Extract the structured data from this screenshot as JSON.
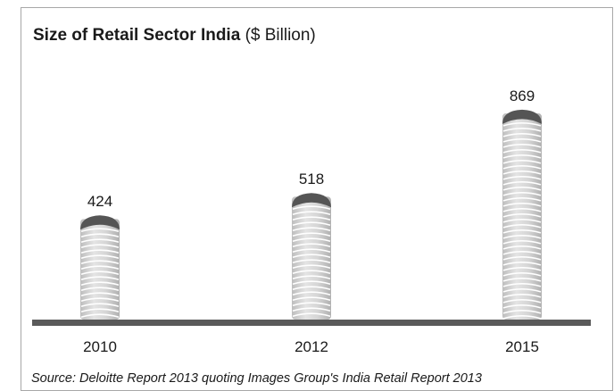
{
  "chart_data": {
    "type": "bar",
    "title": "Size of Retail Sector India",
    "unit_label": "($ Billion)",
    "categories": [
      "2010",
      "2012",
      "2015"
    ],
    "values": [
      424,
      518,
      869
    ],
    "xlabel": "",
    "ylabel": "",
    "legend": "none",
    "grid": false
  },
  "source": "Source: Deloitte Report 2013 quoting Images Group's India Retail Report 2013",
  "colors": {
    "cap": "#555555",
    "coil": "#cfcfcf",
    "coil_line": "#ffffff",
    "baseline": "#5a5a5a",
    "frame": "#a8a8a8"
  }
}
